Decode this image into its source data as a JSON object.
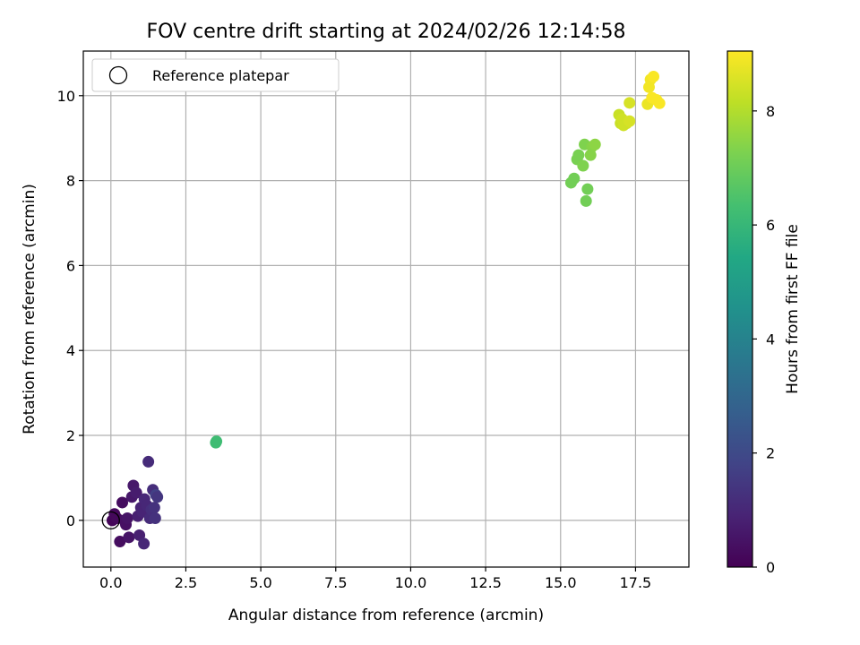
{
  "chart_data": {
    "type": "scatter",
    "title": "FOV centre drift starting at 2024/02/26 12:14:58",
    "xlabel": "Angular distance from reference (arcmin)",
    "ylabel": "Rotation from reference (arcmin)",
    "xlim": [
      -0.92,
      19.28
    ],
    "ylim": [
      -1.1,
      11.05
    ],
    "xticks": [
      "0.0",
      "2.5",
      "5.0",
      "7.5",
      "10.0",
      "12.5",
      "15.0",
      "17.5"
    ],
    "xtick_values": [
      0,
      2.5,
      5,
      7.5,
      10,
      12.5,
      15,
      17.5
    ],
    "yticks": [
      "0",
      "2",
      "4",
      "6",
      "8",
      "10"
    ],
    "ytick_values": [
      0,
      2,
      4,
      6,
      8,
      10
    ],
    "grid": true,
    "legend": {
      "position": "top-left",
      "entries": [
        "Reference platepar"
      ]
    },
    "reference_point": {
      "x": 0,
      "y": 0
    },
    "colorbar": {
      "label": "Hours from first FF file",
      "range": [
        0,
        9.05
      ],
      "ticks": [
        "0",
        "2",
        "4",
        "6",
        "8"
      ],
      "tick_values": [
        0,
        2,
        4,
        6,
        8
      ],
      "colormap": "viridis"
    },
    "points": [
      {
        "x": 0.05,
        "y": 0.0,
        "c": 0.1
      },
      {
        "x": 0.12,
        "y": 0.15,
        "c": 0.2
      },
      {
        "x": 0.2,
        "y": 0.05,
        "c": 0.2
      },
      {
        "x": 0.3,
        "y": -0.5,
        "c": 0.3
      },
      {
        "x": 0.38,
        "y": 0.42,
        "c": 0.3
      },
      {
        "x": 0.45,
        "y": 0.0,
        "c": 0.4
      },
      {
        "x": 0.5,
        "y": -0.1,
        "c": 0.4
      },
      {
        "x": 0.55,
        "y": 0.05,
        "c": 0.5
      },
      {
        "x": 0.6,
        "y": -0.4,
        "c": 0.5
      },
      {
        "x": 0.7,
        "y": 0.55,
        "c": 0.6
      },
      {
        "x": 0.75,
        "y": 0.82,
        "c": 0.6
      },
      {
        "x": 0.85,
        "y": 0.65,
        "c": 0.7
      },
      {
        "x": 0.9,
        "y": 0.1,
        "c": 0.8
      },
      {
        "x": 0.95,
        "y": -0.35,
        "c": 0.8
      },
      {
        "x": 1.0,
        "y": 0.3,
        "c": 0.9
      },
      {
        "x": 1.05,
        "y": 0.2,
        "c": 0.9
      },
      {
        "x": 1.1,
        "y": -0.55,
        "c": 1.0
      },
      {
        "x": 1.12,
        "y": 0.5,
        "c": 1.0
      },
      {
        "x": 1.2,
        "y": 0.35,
        "c": 1.0
      },
      {
        "x": 1.25,
        "y": 1.38,
        "c": 1.1
      },
      {
        "x": 1.3,
        "y": 0.05,
        "c": 1.1
      },
      {
        "x": 1.35,
        "y": 0.25,
        "c": 1.2
      },
      {
        "x": 1.4,
        "y": 0.72,
        "c": 1.2
      },
      {
        "x": 1.45,
        "y": 0.3,
        "c": 1.3
      },
      {
        "x": 1.48,
        "y": 0.05,
        "c": 1.3
      },
      {
        "x": 1.5,
        "y": 0.6,
        "c": 1.7
      },
      {
        "x": 1.55,
        "y": 0.55,
        "c": 1.4
      },
      {
        "x": 3.5,
        "y": 1.83,
        "c": 6.2
      },
      {
        "x": 3.52,
        "y": 1.86,
        "c": 6.2
      },
      {
        "x": 15.35,
        "y": 7.95,
        "c": 7.1
      },
      {
        "x": 15.45,
        "y": 8.05,
        "c": 7.1
      },
      {
        "x": 15.55,
        "y": 8.5,
        "c": 7.2
      },
      {
        "x": 15.6,
        "y": 8.6,
        "c": 7.2
      },
      {
        "x": 15.75,
        "y": 8.35,
        "c": 7.3
      },
      {
        "x": 15.8,
        "y": 8.85,
        "c": 7.3
      },
      {
        "x": 15.85,
        "y": 7.52,
        "c": 7.1
      },
      {
        "x": 15.9,
        "y": 7.8,
        "c": 7.1
      },
      {
        "x": 16.0,
        "y": 8.6,
        "c": 7.4
      },
      {
        "x": 16.05,
        "y": 8.8,
        "c": 7.4
      },
      {
        "x": 16.15,
        "y": 8.85,
        "c": 7.5
      },
      {
        "x": 16.95,
        "y": 9.55,
        "c": 8.3
      },
      {
        "x": 17.0,
        "y": 9.35,
        "c": 8.3
      },
      {
        "x": 17.05,
        "y": 9.45,
        "c": 8.4
      },
      {
        "x": 17.1,
        "y": 9.3,
        "c": 8.4
      },
      {
        "x": 17.2,
        "y": 9.35,
        "c": 8.4
      },
      {
        "x": 17.3,
        "y": 9.4,
        "c": 8.5
      },
      {
        "x": 17.3,
        "y": 9.83,
        "c": 8.5
      },
      {
        "x": 17.9,
        "y": 9.8,
        "c": 8.8
      },
      {
        "x": 17.95,
        "y": 10.2,
        "c": 8.9
      },
      {
        "x": 18.0,
        "y": 10.38,
        "c": 8.9
      },
      {
        "x": 18.05,
        "y": 9.95,
        "c": 9.0
      },
      {
        "x": 18.1,
        "y": 10.45,
        "c": 9.0
      },
      {
        "x": 18.2,
        "y": 9.9,
        "c": 9.0
      },
      {
        "x": 18.3,
        "y": 9.82,
        "c": 9.0
      }
    ]
  }
}
